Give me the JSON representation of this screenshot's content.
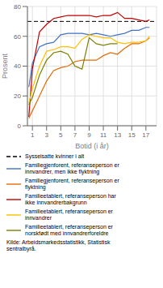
{
  "chart_data": {
    "type": "line",
    "xlabel": "Botid (i år)",
    "ylabel": "Prosent",
    "source": "Kilde: Arbeidsmarkedsstatistikk, Statistisk\nsentralbyrå.",
    "xlim": [
      0.3,
      18.5
    ],
    "xticks": [
      1,
      3,
      5,
      7,
      9,
      11,
      13,
      15,
      17
    ],
    "ylim": [
      0,
      80
    ],
    "yticks": [
      0,
      20,
      40,
      60,
      80
    ],
    "grid": true,
    "x": [
      0.5,
      1,
      2,
      3,
      4,
      5,
      6,
      7,
      8,
      9,
      10,
      11,
      12,
      13,
      14,
      15,
      16,
      17,
      17.5
    ],
    "reference_lines": [
      {
        "name": "Sysselsatte kvinner i alt",
        "y": 70,
        "color": "#000000",
        "line_style": "dashed"
      }
    ],
    "series": [
      {
        "name": "Familiegjenforent, referanseperson er\ninnvandrer, men ikke flyktning",
        "color": "#4472C4",
        "line_style": "solid",
        "values": [
          26,
          42,
          53,
          55,
          56,
          61,
          62,
          62,
          62,
          61,
          62,
          61,
          60,
          61,
          62,
          64,
          64,
          66,
          66
        ]
      },
      {
        "name": "Familiegjenforent, referanseperson er\nflyktning",
        "color": "#E36C09",
        "line_style": "solid",
        "values": [
          5,
          10,
          20,
          30,
          37,
          39,
          40,
          43,
          44,
          44,
          44,
          47,
          49,
          48,
          52,
          55,
          55,
          57,
          59
        ]
      },
      {
        "name": "Familieetablert, referanseperson har\nikke innvandrerbakgrunn",
        "color": "#C00000",
        "line_style": "solid",
        "values": [
          6,
          38,
          63,
          68,
          72,
          73,
          74,
          74,
          74,
          74,
          73,
          74,
          74,
          76,
          72,
          72,
          71,
          70,
          71
        ]
      },
      {
        "name": "Familieetablert, referanseperson er\ninnvandrer",
        "color": "#FFC000",
        "line_style": "solid",
        "values": [
          15,
          25,
          40,
          50,
          51,
          53,
          53,
          52,
          58,
          61,
          60,
          59,
          59,
          56,
          55,
          56,
          56,
          57,
          60
        ]
      },
      {
        "name": "Familieetablert, referanseperson er\nnorskfødt med innvandrerforeldre",
        "color": "#7F7F00",
        "line_style": "solid",
        "values": [
          14,
          19,
          34,
          44,
          49,
          50,
          48,
          40,
          38,
          59,
          55,
          54,
          55,
          55,
          null,
          null,
          null,
          null,
          null
        ]
      }
    ]
  }
}
